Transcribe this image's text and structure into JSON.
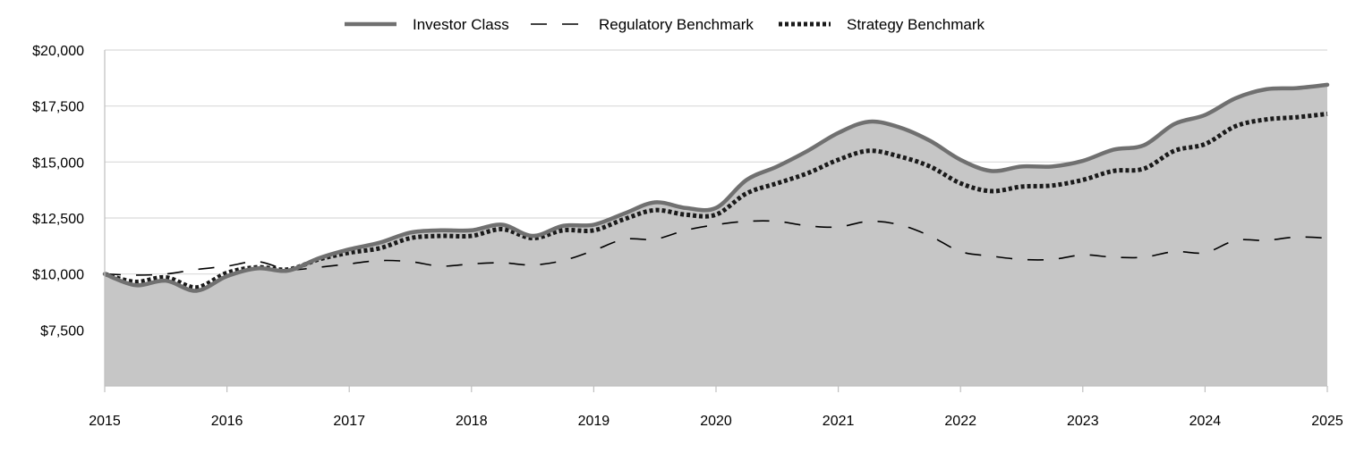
{
  "chart_data": {
    "type": "area",
    "title": "",
    "xlabel": "",
    "ylabel": "",
    "x_ticks": [
      "2015",
      "2016",
      "2017",
      "2018",
      "2019",
      "2020",
      "2021",
      "2022",
      "2023",
      "2024",
      "2025"
    ],
    "y_ticks": [
      {
        "value": 7500,
        "label": "$7,500"
      },
      {
        "value": 10000,
        "label": "$10,000"
      },
      {
        "value": 12500,
        "label": "$12,500"
      },
      {
        "value": 15000,
        "label": "$15,000"
      },
      {
        "value": 17500,
        "label": "$17,500"
      },
      {
        "value": 20000,
        "label": "$20,000"
      }
    ],
    "xlim": [
      2015,
      2025
    ],
    "ylim": [
      5000,
      20000
    ],
    "grid": "horizontal",
    "legend_position": "top-center",
    "series": [
      {
        "name": "Investor Class",
        "style": "solid",
        "color": "#707070",
        "fill": "#c6c6c6",
        "x": [
          2015.0,
          2015.25,
          2015.5,
          2015.75,
          2016.0,
          2016.25,
          2016.5,
          2016.75,
          2017.0,
          2017.25,
          2017.5,
          2017.75,
          2018.0,
          2018.25,
          2018.5,
          2018.75,
          2019.0,
          2019.25,
          2019.5,
          2019.75,
          2020.0,
          2020.25,
          2020.5,
          2020.75,
          2021.0,
          2021.25,
          2021.5,
          2021.75,
          2022.0,
          2022.25,
          2022.5,
          2022.75,
          2023.0,
          2023.25,
          2023.5,
          2023.75,
          2024.0,
          2024.25,
          2024.5,
          2024.75,
          2025.0
        ],
        "values": [
          10000,
          9500,
          9700,
          9250,
          9900,
          10250,
          10150,
          10700,
          11100,
          11400,
          11850,
          11950,
          11950,
          12200,
          11700,
          12150,
          12200,
          12700,
          13200,
          12950,
          12950,
          14200,
          14800,
          15500,
          16300,
          16800,
          16550,
          15950,
          15100,
          14600,
          14800,
          14800,
          15050,
          15550,
          15750,
          16700,
          17100,
          17850,
          18250,
          18300,
          18450
        ]
      },
      {
        "name": "Regulatory Benchmark",
        "style": "dashed",
        "color": "#000000",
        "x": [
          2015.0,
          2015.25,
          2015.5,
          2015.75,
          2016.0,
          2016.25,
          2016.5,
          2016.75,
          2017.0,
          2017.25,
          2017.5,
          2017.75,
          2018.0,
          2018.25,
          2018.5,
          2018.75,
          2019.0,
          2019.25,
          2019.5,
          2019.75,
          2020.0,
          2020.25,
          2020.5,
          2020.75,
          2021.0,
          2021.25,
          2021.5,
          2021.75,
          2022.0,
          2022.25,
          2022.5,
          2022.75,
          2023.0,
          2023.25,
          2023.5,
          2023.75,
          2024.0,
          2024.25,
          2024.5,
          2024.75,
          2025.0
        ],
        "values": [
          10000,
          9950,
          10000,
          10200,
          10350,
          10550,
          10200,
          10300,
          10450,
          10600,
          10550,
          10350,
          10450,
          10500,
          10400,
          10600,
          11050,
          11550,
          11550,
          11950,
          12200,
          12350,
          12350,
          12150,
          12100,
          12350,
          12200,
          11700,
          11000,
          10800,
          10650,
          10650,
          10850,
          10750,
          10750,
          11000,
          10950,
          11500,
          11500,
          11650,
          11600
        ]
      },
      {
        "name": "Strategy Benchmark",
        "style": "dotted",
        "color": "#1a1a1a",
        "x": [
          2015.0,
          2015.25,
          2015.5,
          2015.75,
          2016.0,
          2016.25,
          2016.5,
          2016.75,
          2017.0,
          2017.25,
          2017.5,
          2017.75,
          2018.0,
          2018.25,
          2018.5,
          2018.75,
          2019.0,
          2019.25,
          2019.5,
          2019.75,
          2020.0,
          2020.25,
          2020.5,
          2020.75,
          2021.0,
          2021.25,
          2021.5,
          2021.75,
          2022.0,
          2022.25,
          2022.5,
          2022.75,
          2023.0,
          2023.25,
          2023.5,
          2023.75,
          2024.0,
          2024.25,
          2024.5,
          2024.75,
          2025.0
        ],
        "values": [
          10000,
          9650,
          9850,
          9400,
          10050,
          10300,
          10200,
          10650,
          10950,
          11150,
          11600,
          11700,
          11700,
          12000,
          11600,
          11950,
          11950,
          12450,
          12850,
          12650,
          12650,
          13600,
          14050,
          14500,
          15100,
          15500,
          15250,
          14800,
          14050,
          13700,
          13900,
          13950,
          14200,
          14600,
          14700,
          15500,
          15800,
          16600,
          16900,
          17000,
          17150
        ]
      }
    ]
  }
}
